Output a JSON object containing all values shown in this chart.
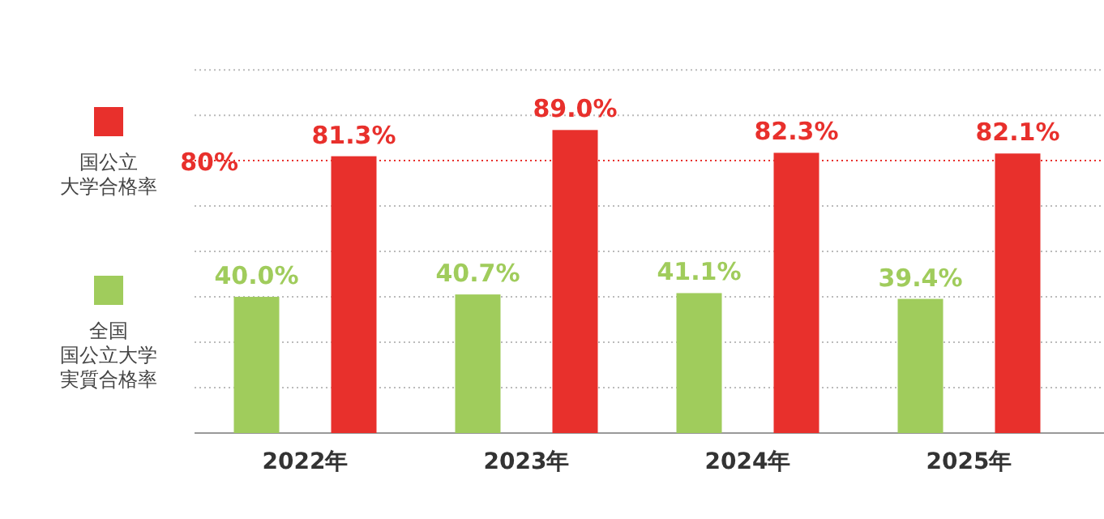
{
  "chart_data": {
    "type": "bar",
    "categories": [
      "2022年",
      "2023年",
      "2024年",
      "2025年"
    ],
    "series": [
      {
        "name": "全国国公立大学実質合格率",
        "color": "#a0cc5c",
        "values": [
          40.0,
          40.7,
          41.1,
          39.4
        ],
        "value_labels": [
          "40.0%",
          "40.7%",
          "41.1%",
          "39.4%"
        ]
      },
      {
        "name": "国公立大学合格率",
        "color": "#e8302c",
        "values": [
          81.3,
          89.0,
          82.3,
          82.1
        ],
        "value_labels": [
          "81.3%",
          "89.0%",
          "82.3%",
          "82.1%"
        ]
      }
    ],
    "ylim": [
      0,
      106.7
    ],
    "yticks": [
      {
        "value": 13.33,
        "label": null
      },
      {
        "value": 26.67,
        "label": null
      },
      {
        "value": 40,
        "label": null
      },
      {
        "value": 53.33,
        "label": null
      },
      {
        "value": 66.67,
        "label": null
      },
      {
        "value": 80,
        "label": null
      },
      {
        "value": 93.33,
        "label": null
      },
      {
        "value": 106.67,
        "label": null
      }
    ],
    "ref_lines": [
      {
        "axis": "y",
        "value": 80,
        "label": "80%",
        "color": "#e8302c",
        "line_style": "dotted"
      }
    ],
    "grid": "y",
    "legend": "left",
    "tick_labels": "x"
  }
}
